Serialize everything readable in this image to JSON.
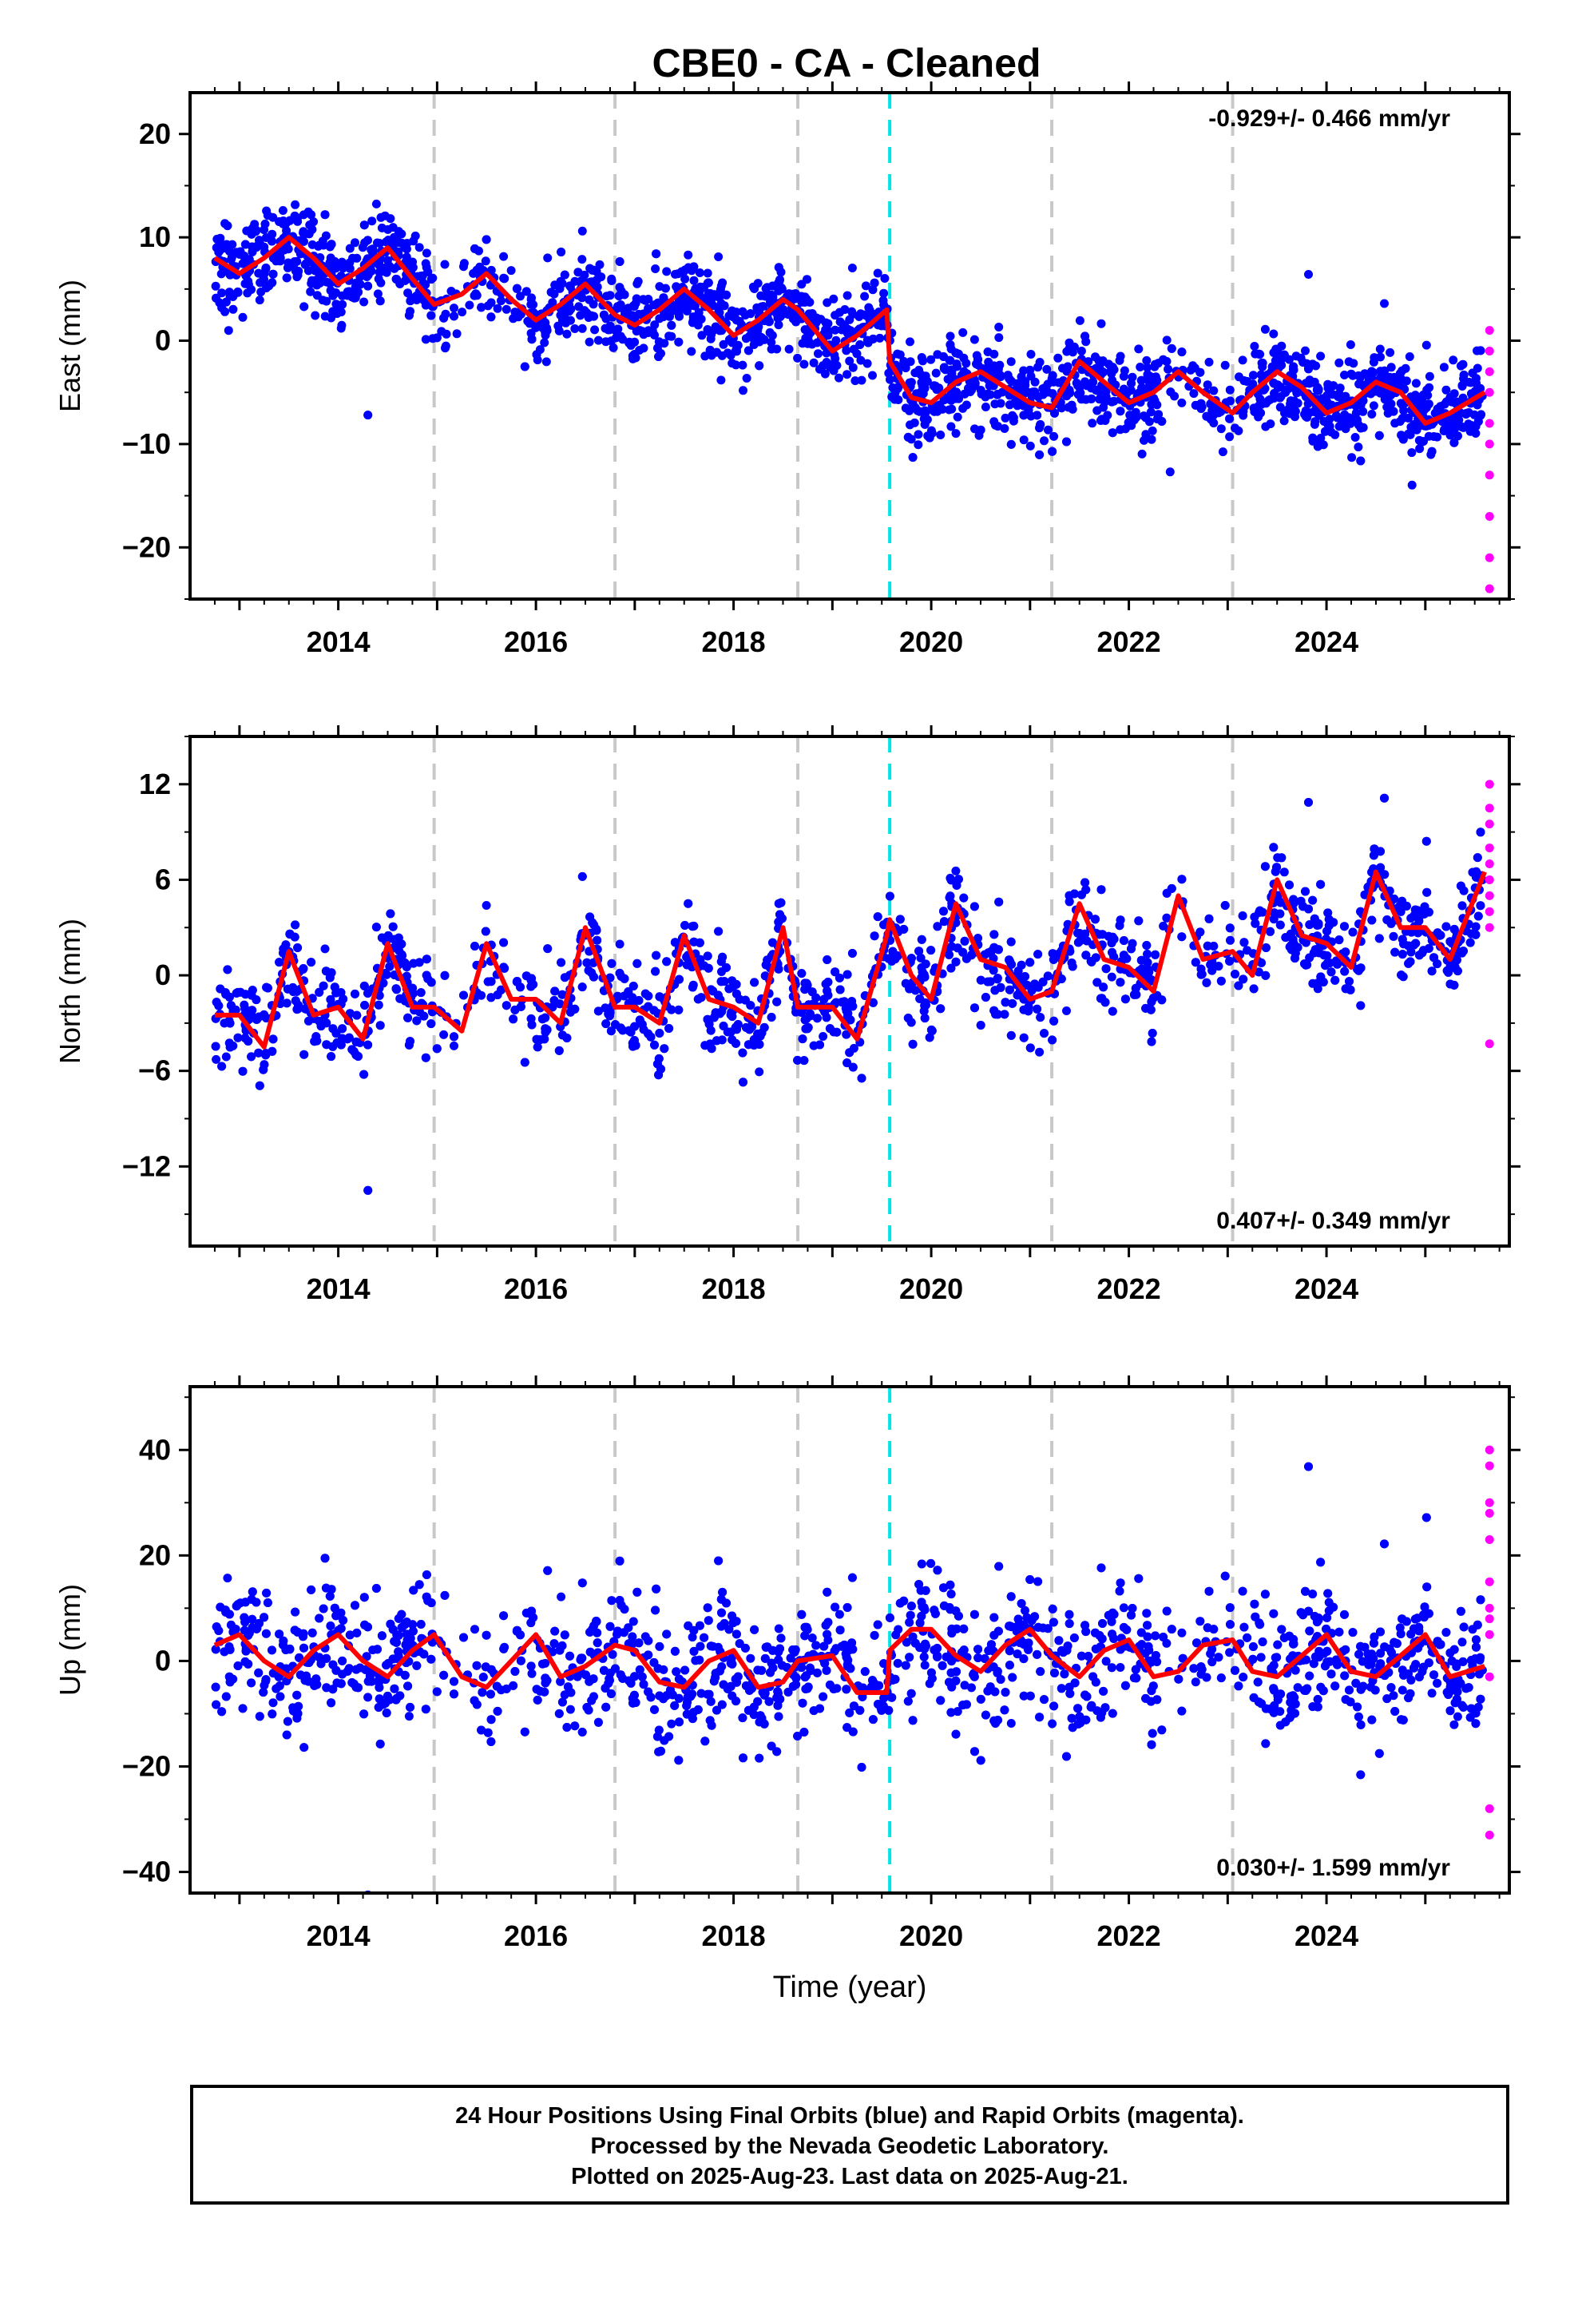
{
  "title": "CBE0  - CA - Cleaned",
  "chart_data": [
    {
      "type": "scatter",
      "panel": "East",
      "ylabel": "East (mm)",
      "xlabel": "",
      "xlim": [
        2012.5,
        2025.85
      ],
      "ylim": [
        -25,
        24
      ],
      "yticks": [
        -20,
        -10,
        0,
        10,
        20
      ],
      "xticks": [
        2014,
        2016,
        2018,
        2020,
        2022,
        2024
      ],
      "rate_label": "-0.929+/- 0.466 mm/yr",
      "rate_position": "top-right",
      "grid": false,
      "equipment_changes_gray": [
        2014.97,
        2016.8,
        2018.65,
        2021.22,
        2023.05
      ],
      "equipment_changes_cyan": [
        2019.58
      ],
      "model_curve": {
        "x": [
          2012.75,
          2013.0,
          2013.25,
          2013.5,
          2013.75,
          2014.0,
          2014.25,
          2014.5,
          2014.75,
          2014.97,
          2015.25,
          2015.5,
          2015.75,
          2016.0,
          2016.25,
          2016.5,
          2016.8,
          2017.0,
          2017.25,
          2017.5,
          2017.75,
          2018.0,
          2018.25,
          2018.5,
          2018.65,
          2019.0,
          2019.25,
          2019.55,
          2019.58,
          2019.8,
          2020.0,
          2020.25,
          2020.5,
          2020.75,
          2021.0,
          2021.22,
          2021.5,
          2021.75,
          2022.0,
          2022.25,
          2022.5,
          2022.75,
          2023.05,
          2023.25,
          2023.5,
          2023.75,
          2024.0,
          2024.25,
          2024.5,
          2024.75,
          2025.0,
          2025.25,
          2025.6
        ],
        "y": [
          8.0,
          6.5,
          8.0,
          10.0,
          8.0,
          5.5,
          7.0,
          9.0,
          6.0,
          3.5,
          4.5,
          6.5,
          4.0,
          2.0,
          3.5,
          5.5,
          2.5,
          1.5,
          3.0,
          5.0,
          3.0,
          0.5,
          2.0,
          4.0,
          3.0,
          -1.0,
          0.5,
          3.0,
          -2.0,
          -5.5,
          -6.0,
          -4.0,
          -3.0,
          -4.5,
          -6.0,
          -6.5,
          -2.0,
          -4.0,
          -6.0,
          -5.0,
          -3.0,
          -5.0,
          -7.0,
          -5.0,
          -3.0,
          -4.5,
          -7.0,
          -6.0,
          -4.0,
          -5.0,
          -8.0,
          -7.0,
          -5.0
        ]
      },
      "rapid_points_magenta": [
        1,
        -1,
        -3,
        -5,
        -8,
        -10,
        -13,
        -17,
        -21,
        -24
      ]
    },
    {
      "type": "scatter",
      "panel": "North",
      "ylabel": "North (mm)",
      "xlabel": "",
      "xlim": [
        2012.5,
        2025.85
      ],
      "ylim": [
        -17,
        15
      ],
      "yticks": [
        -12,
        -6,
        0,
        6,
        12
      ],
      "xticks": [
        2014,
        2016,
        2018,
        2020,
        2022,
        2024
      ],
      "rate_label": "0.407+/- 0.349 mm/yr",
      "rate_position": "bottom-right",
      "grid": false,
      "equipment_changes_gray": [
        2014.97,
        2016.8,
        2018.65,
        2021.22,
        2023.05
      ],
      "equipment_changes_cyan": [
        2019.58
      ],
      "model_curve": {
        "x": [
          2012.75,
          2013.0,
          2013.25,
          2013.5,
          2013.75,
          2014.0,
          2014.25,
          2014.5,
          2014.75,
          2014.97,
          2015.25,
          2015.5,
          2015.75,
          2016.0,
          2016.25,
          2016.5,
          2016.8,
          2017.0,
          2017.25,
          2017.5,
          2017.75,
          2018.0,
          2018.25,
          2018.5,
          2018.65,
          2019.0,
          2019.25,
          2019.55,
          2019.58,
          2019.8,
          2020.0,
          2020.25,
          2020.5,
          2020.75,
          2021.0,
          2021.22,
          2021.5,
          2021.75,
          2022.0,
          2022.25,
          2022.5,
          2022.75,
          2023.05,
          2023.25,
          2023.5,
          2023.75,
          2024.0,
          2024.25,
          2024.5,
          2024.75,
          2025.0,
          2025.25,
          2025.6
        ],
        "y": [
          -2.5,
          -2.5,
          -4.5,
          1.5,
          -2.5,
          -2.0,
          -4.0,
          2.0,
          -2.0,
          -2.0,
          -3.5,
          2.0,
          -1.5,
          -1.5,
          -3.0,
          3.0,
          -2.0,
          -2.0,
          -3.0,
          2.5,
          -1.5,
          -2.0,
          -3.0,
          3.0,
          -2.0,
          -2.0,
          -4.0,
          2.5,
          3.5,
          0.0,
          -1.5,
          4.5,
          1.0,
          0.5,
          -1.5,
          -1.0,
          4.5,
          1.0,
          0.5,
          -1.0,
          5.0,
          1.0,
          1.5,
          0.0,
          6.0,
          2.5,
          2.0,
          0.5,
          6.5,
          3.0,
          3.0,
          1.0,
          6.5
        ]
      },
      "rapid_points_magenta": [
        12,
        10.5,
        9.5,
        8,
        7,
        6,
        5,
        4,
        3,
        -4.3
      ]
    },
    {
      "type": "scatter",
      "panel": "Up",
      "ylabel": "Up (mm)",
      "xlabel": "Time (year)",
      "xlim": [
        2012.5,
        2025.85
      ],
      "ylim": [
        -44,
        52
      ],
      "yticks": [
        -40,
        -20,
        0,
        20,
        40
      ],
      "xticks": [
        2014,
        2016,
        2018,
        2020,
        2022,
        2024
      ],
      "rate_label": "0.030+/- 1.599 mm/yr",
      "rate_position": "bottom-right",
      "grid": false,
      "equipment_changes_gray": [
        2014.97,
        2016.8,
        2018.65,
        2021.22,
        2023.05
      ],
      "equipment_changes_cyan": [
        2019.58
      ],
      "model_curve": {
        "x": [
          2012.75,
          2013.0,
          2013.25,
          2013.5,
          2013.75,
          2014.0,
          2014.25,
          2014.5,
          2014.75,
          2014.97,
          2015.25,
          2015.5,
          2015.75,
          2016.0,
          2016.25,
          2016.5,
          2016.8,
          2017.0,
          2017.25,
          2017.5,
          2017.75,
          2018.0,
          2018.25,
          2018.5,
          2018.65,
          2019.0,
          2019.25,
          2019.55,
          2019.58,
          2019.8,
          2020.0,
          2020.25,
          2020.5,
          2020.75,
          2021.0,
          2021.22,
          2021.5,
          2021.75,
          2022.0,
          2022.25,
          2022.5,
          2022.75,
          2023.05,
          2023.25,
          2023.5,
          2023.75,
          2024.0,
          2024.25,
          2024.5,
          2024.75,
          2025.0,
          2025.25,
          2025.6
        ],
        "y": [
          3,
          5,
          0,
          -3,
          2,
          5,
          0,
          -3,
          2,
          5,
          -3,
          -5,
          0,
          5,
          -3,
          -1,
          3,
          2,
          -4,
          -5,
          0,
          2,
          -5,
          -4,
          0,
          1,
          -6,
          -6,
          2,
          6,
          6,
          1,
          -2,
          3,
          6,
          1,
          -3,
          2,
          4,
          -3,
          -2,
          3,
          4,
          -2,
          -3,
          1,
          5,
          -2,
          -3,
          1,
          5,
          -3,
          -1
        ]
      },
      "rapid_points_magenta": [
        40,
        37,
        30,
        28,
        23,
        15,
        10,
        8,
        5,
        -3,
        -28,
        -33
      ]
    }
  ],
  "footer": {
    "line1": "24 Hour Positions Using Final Orbits (blue) and Rapid Orbits (magenta).",
    "line2": "Processed by the Nevada Geodetic Laboratory.",
    "line3": "Plotted on 2025-Aug-23. Last data on 2025-Aug-21."
  },
  "colors": {
    "final_points": "#0000ff",
    "rapid_points": "#ff00ff",
    "model": "#ff0000",
    "break_gray": "#c8c8c8",
    "break_cyan": "#00e5e5"
  }
}
